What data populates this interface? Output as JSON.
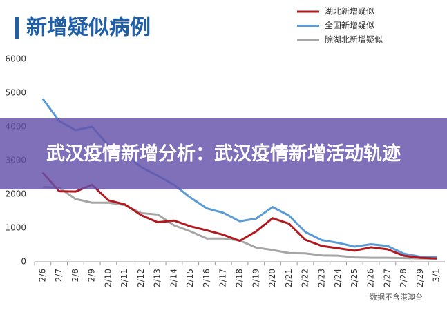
{
  "chart_data": {
    "type": "line",
    "title": "新增疑似病例",
    "note": "数据不含港澳台",
    "categories": [
      "2/6",
      "2/7",
      "2/8",
      "2/9",
      "2/10",
      "2/11",
      "2/12",
      "2/13",
      "2/14",
      "2/15",
      "2/16",
      "2/17",
      "2/18",
      "2/19",
      "2/20",
      "2/21",
      "2/22",
      "2/23",
      "2/24",
      "2/25",
      "2/26",
      "2/27",
      "2/28",
      "2/29",
      "3/1"
    ],
    "series": [
      {
        "name": "湖北新增疑似",
        "color": "#b0191e",
        "values": [
          2640,
          2090,
          2080,
          2280,
          1820,
          1700,
          1380,
          1170,
          1220,
          1050,
          930,
          800,
          620,
          900,
          1290,
          1130,
          650,
          470,
          400,
          330,
          430,
          370,
          180,
          120,
          100
        ]
      },
      {
        "name": "全国新增疑似",
        "color": "#5b9bd5",
        "values": [
          4830,
          4170,
          3900,
          4000,
          3450,
          3200,
          2800,
          2550,
          2280,
          1900,
          1580,
          1450,
          1200,
          1280,
          1620,
          1370,
          880,
          640,
          560,
          450,
          520,
          470,
          240,
          150,
          150
        ]
      },
      {
        "name": "除湖北新增疑似",
        "color": "#a6a6a6",
        "values": [
          2220,
          2190,
          1860,
          1750,
          1750,
          1680,
          1440,
          1400,
          1080,
          900,
          690,
          690,
          630,
          420,
          350,
          260,
          250,
          190,
          180,
          130,
          120,
          120,
          110,
          100,
          90
        ]
      }
    ],
    "ylim": [
      0,
      6000
    ],
    "yticks": [
      0,
      1000,
      2000,
      3000,
      4000,
      5000,
      6000
    ],
    "grid": false
  },
  "banner": {
    "text": "武汉疫情新增分析：武汉疫情新增活动轨迹"
  }
}
